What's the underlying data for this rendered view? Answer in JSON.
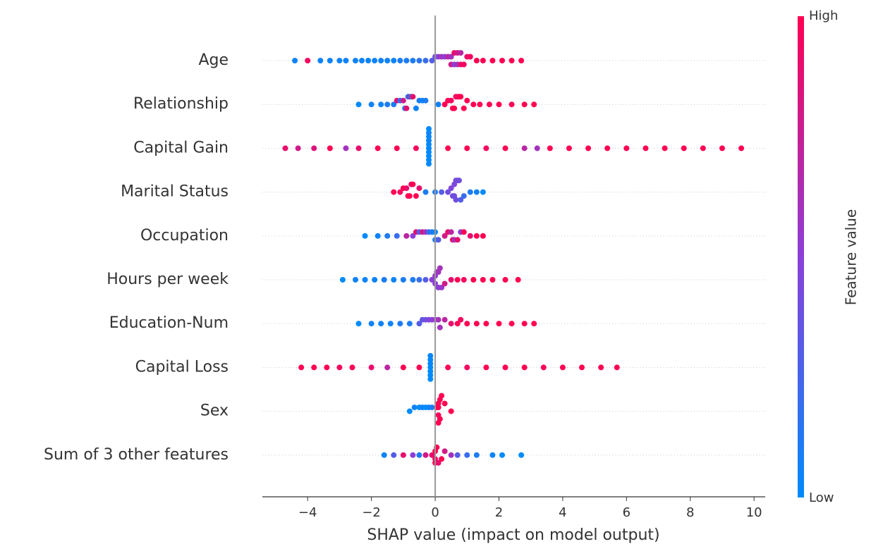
{
  "chart_data": {
    "type": "beeswarm",
    "xlabel": "SHAP value (impact on model output)",
    "xlim": [
      -5.42,
      10.35
    ],
    "xticks": [
      {
        "value": -4,
        "label": "−4"
      },
      {
        "value": -2,
        "label": "−2"
      },
      0,
      2,
      4,
      6,
      8,
      10
    ],
    "zero_line": true,
    "row_lines": true,
    "colorbar": {
      "label": "Feature value",
      "high": "High",
      "low": "Low",
      "clim": [
        0,
        1
      ],
      "colors": [
        "#008bfb",
        "#8c3fd8",
        "#ff0052"
      ]
    },
    "series": [
      {
        "name": "Age",
        "points": [
          [
            -4.4,
            0.05
          ],
          [
            -4.0,
            0.95
          ],
          [
            -3.6,
            0.05
          ],
          [
            -3.3,
            0.05
          ],
          [
            -3.0,
            0.05
          ],
          [
            -2.8,
            0.05
          ],
          [
            -2.5,
            0.05
          ],
          [
            -2.3,
            0.05
          ],
          [
            -2.1,
            0.05
          ],
          [
            -1.9,
            0.05
          ],
          [
            -1.7,
            0.05
          ],
          [
            -1.5,
            0.05
          ],
          [
            -1.3,
            0.05
          ],
          [
            -1.1,
            0.1
          ],
          [
            -0.9,
            0.1
          ],
          [
            -0.7,
            0.1
          ],
          [
            -0.5,
            0.15
          ],
          [
            -0.3,
            0.2
          ],
          [
            -0.1,
            0.3
          ],
          [
            0.0,
            0.4
          ],
          [
            0.1,
            0.5
          ],
          [
            0.2,
            0.6
          ],
          [
            0.3,
            0.5
          ],
          [
            0.4,
            0.7
          ],
          [
            0.5,
            0.6
          ],
          [
            0.5,
            0.8
          ],
          [
            0.6,
            0.5
          ],
          [
            0.6,
            0.9
          ],
          [
            0.7,
            0.6
          ],
          [
            0.7,
            0.8
          ],
          [
            0.8,
            0.9
          ],
          [
            0.8,
            0.7
          ],
          [
            0.9,
            0.95
          ],
          [
            1.0,
            0.9
          ],
          [
            1.1,
            0.95
          ],
          [
            1.3,
            1
          ],
          [
            1.5,
            1
          ],
          [
            1.8,
            1
          ],
          [
            2.1,
            1
          ],
          [
            2.4,
            1
          ],
          [
            2.7,
            1
          ]
        ]
      },
      {
        "name": "Relationship",
        "points": [
          [
            -2.4,
            0
          ],
          [
            -2.0,
            0.05
          ],
          [
            -1.7,
            0.05
          ],
          [
            -1.5,
            0.1
          ],
          [
            -1.3,
            0.1
          ],
          [
            -1.2,
            0.9
          ],
          [
            -1.1,
            0.2
          ],
          [
            -1.0,
            0.8
          ],
          [
            -0.95,
            0.1
          ],
          [
            -0.9,
            0.9
          ],
          [
            -0.85,
            0.05
          ],
          [
            -0.8,
            0.7
          ],
          [
            -0.75,
            0.1
          ],
          [
            -0.7,
            0.9
          ],
          [
            -0.6,
            0.05
          ],
          [
            -0.5,
            0.1
          ],
          [
            -0.4,
            0.05
          ],
          [
            -0.3,
            0.1
          ],
          [
            0.1,
            0.05
          ],
          [
            0.3,
            1
          ],
          [
            0.4,
            1
          ],
          [
            0.5,
            0.95
          ],
          [
            0.55,
            1
          ],
          [
            0.6,
            1
          ],
          [
            0.65,
            1
          ],
          [
            0.7,
            0.9
          ],
          [
            0.75,
            1
          ],
          [
            0.8,
            1
          ],
          [
            0.9,
            1
          ],
          [
            1.0,
            1
          ],
          [
            1.2,
            1
          ],
          [
            1.4,
            1
          ],
          [
            1.7,
            1
          ],
          [
            2.0,
            1
          ],
          [
            2.4,
            1
          ],
          [
            2.8,
            1
          ],
          [
            3.1,
            1
          ]
        ]
      },
      {
        "name": "Capital Gain",
        "points": [
          [
            -4.7,
            0.9
          ],
          [
            -4.3,
            0.8
          ],
          [
            -3.8,
            0.85
          ],
          [
            -3.3,
            1
          ],
          [
            -2.8,
            0.6
          ],
          [
            -2.4,
            0.9
          ],
          [
            -1.8,
            1
          ],
          [
            -1.2,
            1
          ],
          [
            -0.6,
            0.95
          ],
          [
            -0.2,
            0
          ],
          [
            -0.2,
            0.02
          ],
          [
            -0.2,
            0.01
          ],
          [
            -0.2,
            0.03
          ],
          [
            -0.2,
            0
          ],
          [
            -0.2,
            0.02
          ],
          [
            -0.2,
            0
          ],
          [
            -0.2,
            0.05
          ],
          [
            -0.2,
            0.01
          ],
          [
            -0.2,
            0
          ],
          [
            0.4,
            1
          ],
          [
            1.0,
            1
          ],
          [
            1.6,
            0.95
          ],
          [
            2.2,
            1
          ],
          [
            2.8,
            0.7
          ],
          [
            3.2,
            0.6
          ],
          [
            3.6,
            1
          ],
          [
            4.2,
            1
          ],
          [
            4.8,
            1
          ],
          [
            5.4,
            1
          ],
          [
            6.0,
            1
          ],
          [
            6.6,
            1
          ],
          [
            7.2,
            1
          ],
          [
            7.8,
            1
          ],
          [
            8.4,
            1
          ],
          [
            9.0,
            1
          ],
          [
            9.6,
            1
          ]
        ]
      },
      {
        "name": "Marital Status",
        "points": [
          [
            -1.3,
            1
          ],
          [
            -1.1,
            0.95
          ],
          [
            -1.0,
            1
          ],
          [
            -0.9,
            0.9
          ],
          [
            -0.85,
            1
          ],
          [
            -0.8,
            1
          ],
          [
            -0.75,
            0.9
          ],
          [
            -0.7,
            1
          ],
          [
            -0.6,
            1
          ],
          [
            -0.5,
            0.9
          ],
          [
            -0.3,
            0.1
          ],
          [
            0.0,
            0.1
          ],
          [
            0.2,
            0.3
          ],
          [
            0.4,
            0.4
          ],
          [
            0.5,
            0.45
          ],
          [
            0.55,
            0.4
          ],
          [
            0.6,
            0.4
          ],
          [
            0.6,
            0.45
          ],
          [
            0.65,
            0.4
          ],
          [
            0.65,
            0.4
          ],
          [
            0.7,
            0.45
          ],
          [
            0.75,
            0.4
          ],
          [
            0.8,
            0.3
          ],
          [
            0.9,
            0.2
          ],
          [
            1.1,
            0.1
          ],
          [
            1.3,
            0.05
          ],
          [
            1.5,
            0
          ]
        ]
      },
      {
        "name": "Occupation",
        "points": [
          [
            -2.2,
            0
          ],
          [
            -1.8,
            0.05
          ],
          [
            -1.5,
            0.1
          ],
          [
            -1.2,
            0.2
          ],
          [
            -0.9,
            0.7
          ],
          [
            -0.7,
            0.5
          ],
          [
            -0.6,
            0.9
          ],
          [
            -0.5,
            0.3
          ],
          [
            -0.4,
            0.8
          ],
          [
            -0.3,
            0.6
          ],
          [
            -0.2,
            0.2
          ],
          [
            -0.1,
            0.1
          ],
          [
            0.0,
            0.05
          ],
          [
            0.0,
            0.1
          ],
          [
            0.1,
            0.3
          ],
          [
            0.3,
            0.8
          ],
          [
            0.4,
            0.9
          ],
          [
            0.5,
            0.7
          ],
          [
            0.55,
            1
          ],
          [
            0.6,
            0.6
          ],
          [
            0.7,
            0.9
          ],
          [
            0.8,
            0.5
          ],
          [
            0.9,
            1
          ],
          [
            1.1,
            0.9
          ],
          [
            1.3,
            1
          ],
          [
            1.5,
            1
          ]
        ]
      },
      {
        "name": "Hours per week",
        "points": [
          [
            -2.9,
            0
          ],
          [
            -2.5,
            0.05
          ],
          [
            -2.2,
            0.05
          ],
          [
            -1.9,
            0.05
          ],
          [
            -1.6,
            0.1
          ],
          [
            -1.3,
            0.05
          ],
          [
            -1.0,
            0.1
          ],
          [
            -0.7,
            0.1
          ],
          [
            -0.5,
            0.2
          ],
          [
            -0.3,
            0.3
          ],
          [
            -0.1,
            0.5
          ],
          [
            0.0,
            0.55
          ],
          [
            0.0,
            0.5
          ],
          [
            0.05,
            0.55
          ],
          [
            0.1,
            0.6
          ],
          [
            0.1,
            0.5
          ],
          [
            0.15,
            0.6
          ],
          [
            0.2,
            0.55
          ],
          [
            0.3,
            0.8
          ],
          [
            0.5,
            0.9
          ],
          [
            0.7,
            1
          ],
          [
            0.9,
            0.95
          ],
          [
            1.2,
            1
          ],
          [
            1.5,
            1
          ],
          [
            1.8,
            1
          ],
          [
            2.2,
            1
          ],
          [
            2.6,
            1
          ]
        ]
      },
      {
        "name": "Education-Num",
        "points": [
          [
            -2.4,
            0
          ],
          [
            -2.0,
            0.05
          ],
          [
            -1.7,
            0.05
          ],
          [
            -1.4,
            0.05
          ],
          [
            -1.1,
            0.1
          ],
          [
            -0.8,
            0.1
          ],
          [
            -0.5,
            0.3
          ],
          [
            -0.4,
            0.35
          ],
          [
            -0.3,
            0.4
          ],
          [
            -0.2,
            0.45
          ],
          [
            -0.1,
            0.5
          ],
          [
            0.0,
            0.55
          ],
          [
            0.1,
            0.6
          ],
          [
            0.15,
            0.6
          ],
          [
            0.3,
            0.7
          ],
          [
            0.5,
            0.9
          ],
          [
            0.7,
            1
          ],
          [
            0.8,
            0.95
          ],
          [
            1.0,
            1
          ],
          [
            1.3,
            1
          ],
          [
            1.6,
            1
          ],
          [
            2.0,
            1
          ],
          [
            2.4,
            1
          ],
          [
            2.8,
            1
          ],
          [
            3.1,
            1
          ]
        ]
      },
      {
        "name": "Capital Loss",
        "points": [
          [
            -4.2,
            1
          ],
          [
            -3.8,
            1
          ],
          [
            -3.4,
            1
          ],
          [
            -3.0,
            0.95
          ],
          [
            -2.6,
            1
          ],
          [
            -2.0,
            0.9
          ],
          [
            -1.5,
            0.7
          ],
          [
            -1.0,
            1
          ],
          [
            -0.5,
            1
          ],
          [
            -0.15,
            0
          ],
          [
            -0.15,
            0.02
          ],
          [
            -0.15,
            0
          ],
          [
            -0.15,
            0.01
          ],
          [
            -0.15,
            0
          ],
          [
            -0.15,
            0.03
          ],
          [
            -0.15,
            0
          ],
          [
            0.4,
            1
          ],
          [
            1.0,
            0.95
          ],
          [
            1.6,
            1
          ],
          [
            2.2,
            1
          ],
          [
            2.8,
            1
          ],
          [
            3.4,
            1
          ],
          [
            4.0,
            1
          ],
          [
            4.6,
            1
          ],
          [
            5.2,
            1
          ],
          [
            5.7,
            1
          ]
        ]
      },
      {
        "name": "Sex",
        "points": [
          [
            -0.8,
            0
          ],
          [
            -0.65,
            0.05
          ],
          [
            -0.5,
            0
          ],
          [
            -0.4,
            0.05
          ],
          [
            -0.3,
            0
          ],
          [
            -0.2,
            0.05
          ],
          [
            -0.1,
            0.1
          ],
          [
            0.05,
            1
          ],
          [
            0.1,
            1
          ],
          [
            0.1,
            0.95
          ],
          [
            0.1,
            1
          ],
          [
            0.15,
            1
          ],
          [
            0.15,
            1
          ],
          [
            0.1,
            1
          ],
          [
            0.2,
            1
          ],
          [
            0.3,
            1
          ],
          [
            0.5,
            1
          ]
        ]
      },
      {
        "name": "Sum of 3 other features",
        "points": [
          [
            -1.6,
            0.05
          ],
          [
            -1.3,
            0.3
          ],
          [
            -1.0,
            0.9
          ],
          [
            -0.7,
            0.5
          ],
          [
            -0.5,
            0.1
          ],
          [
            -0.3,
            0.8
          ],
          [
            -0.1,
            0.9
          ],
          [
            0.0,
            1
          ],
          [
            0.0,
            0.95
          ],
          [
            0.05,
            1
          ],
          [
            0.0,
            1
          ],
          [
            0.1,
            0.9
          ],
          [
            0.2,
            1
          ],
          [
            0.3,
            0.8
          ],
          [
            0.5,
            0.6
          ],
          [
            0.7,
            0.3
          ],
          [
            1.0,
            0.2
          ],
          [
            1.3,
            0.1
          ],
          [
            1.8,
            0.05
          ],
          [
            2.1,
            0
          ],
          [
            2.7,
            0
          ]
        ]
      }
    ]
  }
}
